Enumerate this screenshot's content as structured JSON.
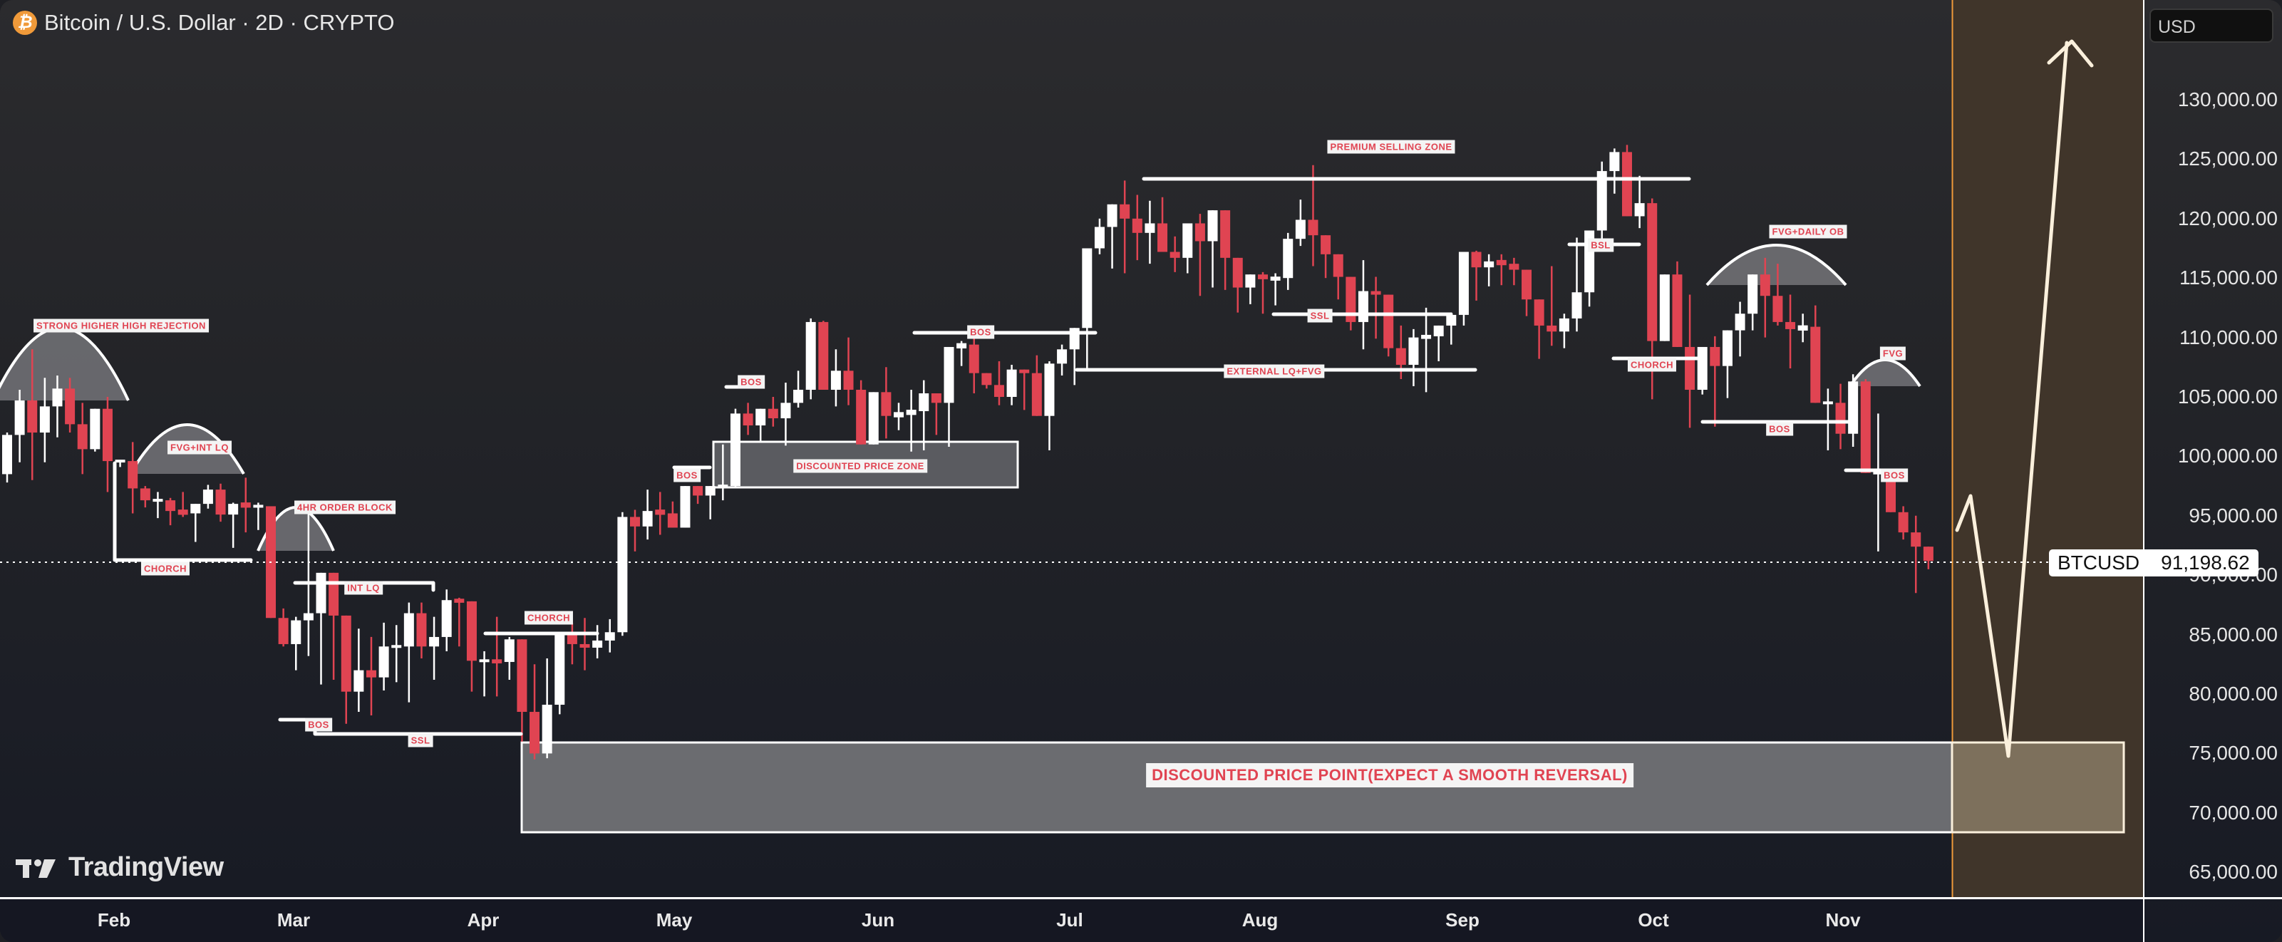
{
  "header": {
    "symbol_icon": "bitcoin-icon",
    "title": "Bitcoin / U.S. Dollar · 2D · CRYPTO"
  },
  "price_axis": {
    "currency": "USD",
    "ticks": [
      "130,000.00",
      "125,000.00",
      "120,000.00",
      "115,000.00",
      "110,000.00",
      "105,000.00",
      "100,000.00",
      "95,000.00",
      "90,000.00",
      "85,000.00",
      "80,000.00",
      "75,000.00",
      "70,000.00",
      "65,000.00"
    ]
  },
  "time_axis": {
    "labels": [
      "Feb",
      "Mar",
      "Apr",
      "May",
      "Jun",
      "Jul",
      "Aug",
      "Sep",
      "Oct",
      "Nov"
    ]
  },
  "current_price": {
    "symbol": "BTCUSD",
    "value": "91,198.62"
  },
  "watermark": "TradingView",
  "colors": {
    "up_candle": "#ffffff",
    "down_candle": "#e04452",
    "annotation_text": "#e04452",
    "zone_fill": "#6b6c70",
    "projection_bg": "#463b29",
    "projection_border": "#f09a3a",
    "projection_arrow": "#fbf0dc"
  },
  "annotations": {
    "strong_hh": "STRONG HIGHER HIGH REJECTION",
    "fvg_int_lq": "FVG+INT LQ",
    "chorch_1": "CHORCH",
    "ob_4hr": "4HR ORDER BLOCK",
    "int_lq": "INT LQ",
    "bos_1": "BOS",
    "ssl_1": "SSL",
    "chorch_2": "CHORCH",
    "bos_2": "BOS",
    "bos_3": "BOS",
    "discounted_zone": "DISCOUNTED PRICE ZONE",
    "bos_4": "BOS",
    "premium": "PREMIUM SELLING ZONE",
    "external_lq": "EXTERNAL LQ+FVG",
    "ssl_2": "SSL",
    "bsl": "BSL",
    "chorch_3": "CHORCH",
    "fvg_daily_ob": "FVG+DAILY OB",
    "bos_5": "BOS",
    "fvg": "FVG",
    "bos_6": "BOS",
    "discounted_point": "DISCOUNTED PRICE POINT(EXPECT A SMOOTH REVERSAL)"
  },
  "chart_data": {
    "type": "candlestick",
    "title": "Bitcoin / U.S. Dollar · 2D · CRYPTO",
    "xlabel": "",
    "ylabel": "USD",
    "ylim": [
      62000,
      137000
    ],
    "x_tick_labels": [
      "Feb",
      "Mar",
      "Apr",
      "May",
      "Jun",
      "Jul",
      "Aug",
      "Sep",
      "Oct",
      "Nov"
    ],
    "y_tick_labels": [
      130000,
      125000,
      120000,
      115000,
      110000,
      105000,
      100000,
      95000,
      90000,
      85000,
      80000,
      75000,
      70000,
      65000
    ],
    "last_price": 91198.62,
    "candles": [
      [
        98500,
        102000,
        97800,
        101800
      ],
      [
        101800,
        105600,
        99500,
        104700
      ],
      [
        104700,
        109000,
        98000,
        102000
      ],
      [
        102000,
        106600,
        99500,
        104200
      ],
      [
        104200,
        106800,
        101600,
        105700
      ],
      [
        105700,
        106600,
        102000,
        102700
      ],
      [
        102700,
        104500,
        98500,
        100600
      ],
      [
        100600,
        104000,
        100400,
        104000
      ],
      [
        104000,
        105000,
        97000,
        99600
      ],
      [
        99600,
        99700,
        99100,
        99600
      ],
      [
        99600,
        101200,
        95200,
        97300
      ],
      [
        97300,
        97500,
        95700,
        96300
      ],
      [
        96300,
        97000,
        94800,
        96300
      ],
      [
        96300,
        96500,
        94200,
        95400
      ],
      [
        95400,
        97000,
        94900,
        95200
      ],
      [
        95200,
        95800,
        92800,
        96000
      ],
      [
        96000,
        97600,
        95600,
        97200
      ],
      [
        97200,
        97700,
        94500,
        95100
      ],
      [
        95100,
        96100,
        92300,
        96000
      ],
      [
        96000,
        98200,
        93600,
        95800
      ],
      [
        95800,
        96100,
        93800,
        95800
      ],
      [
        95800,
        95800,
        91200,
        86400
      ],
      [
        86400,
        87200,
        84000,
        84200
      ],
      [
        84200,
        86500,
        82000,
        86200
      ],
      [
        86200,
        96200,
        83200,
        86800
      ],
      [
        86800,
        90000,
        80800,
        90200
      ],
      [
        90200,
        89500,
        81200,
        86600
      ],
      [
        86600,
        86600,
        77500,
        80200
      ],
      [
        80200,
        85500,
        78500,
        82000
      ],
      [
        82000,
        84800,
        78200,
        81400
      ],
      [
        81400,
        86000,
        80300,
        84000
      ],
      [
        84000,
        85800,
        81000,
        84000
      ],
      [
        84000,
        87700,
        79300,
        86800
      ],
      [
        86800,
        87700,
        83000,
        84000
      ],
      [
        84000,
        86500,
        81200,
        84800
      ],
      [
        84800,
        88800,
        83600,
        87900
      ],
      [
        87900,
        88100,
        84000,
        87800
      ],
      [
        87800,
        86000,
        80200,
        82800
      ],
      [
        82800,
        83600,
        79800,
        82800
      ],
      [
        82800,
        86500,
        79800,
        82700
      ],
      [
        82700,
        84800,
        81200,
        84600
      ],
      [
        84600,
        84600,
        76000,
        78500
      ],
      [
        78500,
        82500,
        74500,
        75000
      ],
      [
        75000,
        83000,
        74600,
        79100
      ],
      [
        79100,
        85000,
        78300,
        85000
      ],
      [
        85000,
        86000,
        82500,
        84200
      ],
      [
        84200,
        86400,
        82000,
        83900
      ],
      [
        83900,
        85800,
        83000,
        84500
      ],
      [
        84500,
        86300,
        83500,
        85200
      ],
      [
        85200,
        95300,
        84900,
        94900
      ],
      [
        94900,
        95500,
        92000,
        94100
      ],
      [
        94100,
        97200,
        93000,
        95400
      ],
      [
        95400,
        97000,
        93400,
        95200
      ],
      [
        95200,
        96200,
        94200,
        94000
      ],
      [
        94000,
        97500,
        94000,
        97500
      ],
      [
        97500,
        96800,
        96000,
        96700
      ],
      [
        96700,
        97500,
        94700,
        97500
      ],
      [
        97500,
        101000,
        96300,
        97500
      ],
      [
        97500,
        104000,
        97300,
        103600
      ],
      [
        103600,
        104500,
        101800,
        102600
      ],
      [
        102600,
        104000,
        101200,
        104000
      ],
      [
        104000,
        105000,
        102500,
        103200
      ],
      [
        103200,
        106200,
        100900,
        104500
      ],
      [
        104500,
        107200,
        104100,
        105600
      ],
      [
        105600,
        111600,
        104800,
        111300
      ],
      [
        111300,
        111400,
        105900,
        105600
      ],
      [
        105600,
        109000,
        104200,
        107200
      ],
      [
        107200,
        110000,
        104300,
        105600
      ],
      [
        105600,
        106400,
        101400,
        101000
      ],
      [
        101000,
        105400,
        101300,
        105400
      ],
      [
        105400,
        107500,
        101500,
        103400
      ],
      [
        103400,
        104500,
        102200,
        103600
      ],
      [
        103600,
        105600,
        100400,
        103800
      ],
      [
        103800,
        106400,
        100500,
        105300
      ],
      [
        105300,
        105300,
        101800,
        104500
      ],
      [
        104500,
        108800,
        100800,
        109200
      ],
      [
        109200,
        109700,
        107600,
        109400
      ],
      [
        109400,
        110000,
        105300,
        107000
      ],
      [
        107000,
        107000,
        105700,
        106000
      ],
      [
        106000,
        108000,
        104300,
        105000
      ],
      [
        105000,
        107700,
        104300,
        107300
      ],
      [
        107300,
        107200,
        103900,
        107000
      ],
      [
        107000,
        108500,
        104000,
        103400
      ],
      [
        103400,
        108000,
        100500,
        107800
      ],
      [
        107800,
        109400,
        106800,
        109000
      ],
      [
        109000,
        109800,
        106000,
        110800
      ],
      [
        110800,
        111700,
        107300,
        117500
      ],
      [
        117500,
        120000,
        117000,
        119300
      ],
      [
        119300,
        120800,
        115800,
        121200
      ],
      [
        121200,
        123200,
        115400,
        120000
      ],
      [
        120000,
        122000,
        116500,
        118800
      ],
      [
        118800,
        121500,
        116200,
        119600
      ],
      [
        119600,
        121800,
        118000,
        117200
      ],
      [
        117200,
        118500,
        115500,
        116700
      ],
      [
        116700,
        119600,
        115400,
        119600
      ],
      [
        119600,
        120400,
        113500,
        118100
      ],
      [
        118100,
        119400,
        114200,
        120700
      ],
      [
        120700,
        118000,
        114000,
        116700
      ],
      [
        116700,
        116700,
        112100,
        114200
      ],
      [
        114200,
        115200,
        112800,
        115300
      ],
      [
        115300,
        115500,
        112000,
        114900
      ],
      [
        114900,
        115400,
        112700,
        115000
      ],
      [
        115000,
        118800,
        114000,
        118300
      ],
      [
        118300,
        121600,
        117700,
        119900
      ],
      [
        119900,
        124500,
        116000,
        118600
      ],
      [
        118600,
        117800,
        115000,
        117000
      ],
      [
        117000,
        117000,
        113200,
        115100
      ],
      [
        115100,
        115100,
        110600,
        111300
      ],
      [
        111300,
        116500,
        109000,
        113900
      ],
      [
        113900,
        115100,
        109900,
        113600
      ],
      [
        113600,
        112800,
        108400,
        109100
      ],
      [
        109100,
        111000,
        106500,
        107700
      ],
      [
        107700,
        110700,
        105900,
        110000
      ],
      [
        110000,
        112500,
        105400,
        110100
      ],
      [
        110100,
        110200,
        108000,
        111000
      ],
      [
        111000,
        112100,
        109400,
        111900
      ],
      [
        111900,
        113600,
        111000,
        117200
      ],
      [
        117200,
        117300,
        113100,
        115900
      ],
      [
        115900,
        117000,
        114300,
        116400
      ],
      [
        116400,
        117000,
        114400,
        116200
      ],
      [
        116200,
        116700,
        114400,
        115700
      ],
      [
        115700,
        115200,
        111800,
        113200
      ],
      [
        113200,
        112200,
        108200,
        111000
      ],
      [
        111000,
        116000,
        109300,
        110500
      ],
      [
        110500,
        112000,
        109100,
        111600
      ],
      [
        111600,
        118400,
        110500,
        113800
      ],
      [
        113800,
        119000,
        112600,
        119000
      ],
      [
        119000,
        124800,
        118300,
        124000
      ],
      [
        124000,
        125900,
        122100,
        125600
      ],
      [
        125600,
        126200,
        121400,
        120200
      ],
      [
        120200,
        123600,
        119200,
        121300
      ],
      [
        121300,
        121700,
        104800,
        109700
      ],
      [
        109700,
        112500,
        110500,
        115300
      ],
      [
        115300,
        116400,
        109200,
        109200
      ],
      [
        109200,
        113600,
        102400,
        105600
      ],
      [
        105600,
        108200,
        105200,
        109200
      ],
      [
        109200,
        110100,
        102500,
        107600
      ],
      [
        107600,
        109900,
        104900,
        110600
      ],
      [
        110600,
        113000,
        108400,
        112000
      ],
      [
        112000,
        113300,
        110600,
        115300
      ],
      [
        115300,
        116700,
        110000,
        113500
      ],
      [
        113500,
        116200,
        111000,
        111300
      ],
      [
        111300,
        113600,
        107400,
        110700
      ],
      [
        110700,
        112000,
        109600,
        110900
      ],
      [
        110900,
        112700,
        110500,
        104500
      ],
      [
        104500,
        105700,
        100500,
        104500
      ],
      [
        104500,
        106100,
        100600,
        101900
      ],
      [
        101900,
        106900,
        100800,
        106300
      ],
      [
        106300,
        106500,
        103100,
        98600
      ],
      [
        98600,
        103600,
        92000,
        98600
      ],
      [
        98600,
        97800,
        95300,
        95300
      ],
      [
        95300,
        95800,
        93000,
        93600
      ],
      [
        93600,
        95000,
        88500,
        92400
      ],
      [
        92400,
        91500,
        90500,
        91200
      ]
    ],
    "annotations": [
      {
        "text": "STRONG HIGHER HIGH REJECTION",
        "type": "arc-zone"
      },
      {
        "text": "FVG+INT LQ",
        "type": "arc-zone"
      },
      {
        "text": "CHORCH",
        "type": "line"
      },
      {
        "text": "4HR ORDER BLOCK",
        "type": "arc-zone"
      },
      {
        "text": "INT LQ",
        "type": "line"
      },
      {
        "text": "BOS",
        "type": "line"
      },
      {
        "text": "SSL",
        "type": "line"
      },
      {
        "text": "CHORCH",
        "type": "line"
      },
      {
        "text": "BOS",
        "type": "line"
      },
      {
        "text": "BOS",
        "type": "line"
      },
      {
        "text": "DISCOUNTED PRICE ZONE",
        "type": "box",
        "range": [
          97500,
          101300
        ]
      },
      {
        "text": "BOS",
        "type": "line"
      },
      {
        "text": "PREMIUM SELLING ZONE",
        "type": "line",
        "price": 123100
      },
      {
        "text": "EXTERNAL LQ+FVG",
        "type": "line",
        "price": 107500
      },
      {
        "text": "SSL",
        "type": "line"
      },
      {
        "text": "BSL",
        "type": "line"
      },
      {
        "text": "CHORCH",
        "type": "line"
      },
      {
        "text": "FVG+DAILY OB",
        "type": "arc-zone"
      },
      {
        "text": "BOS",
        "type": "line",
        "price": 103000
      },
      {
        "text": "FVG",
        "type": "arc-zone"
      },
      {
        "text": "BOS",
        "type": "line",
        "price": 98500
      },
      {
        "text": "DISCOUNTED PRICE POINT(EXPECT A SMOOTH REVERSAL)",
        "type": "box",
        "range": [
          68200,
          76000
        ]
      }
    ],
    "projection": {
      "path_prices": [
        94000,
        97000,
        75000,
        131000
      ],
      "note": "dip to ~75k then rally above 130k"
    }
  }
}
